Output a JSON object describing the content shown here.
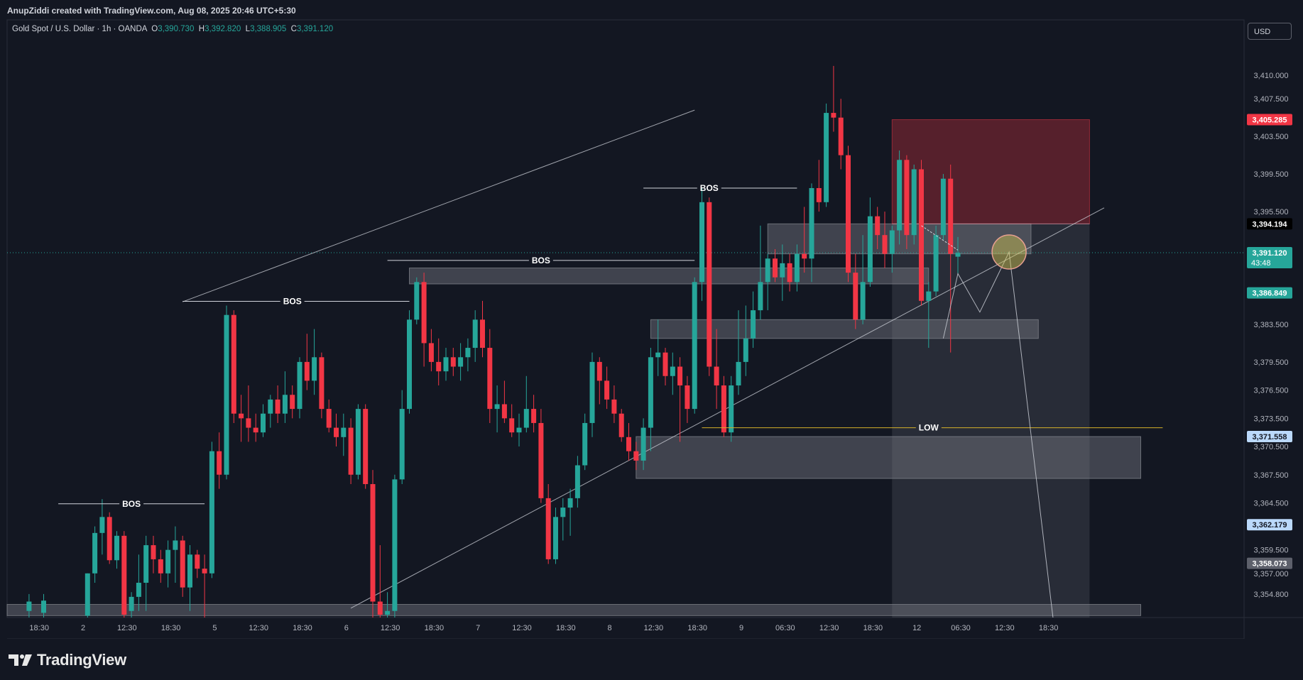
{
  "header": {
    "credit": "AnupZiddi created with TradingView.com, Aug 08, 2025 20:46 UTC+5:30"
  },
  "legend": {
    "symbol": "Gold Spot / U.S. Dollar · 1h · OANDA",
    "o_label": "O",
    "o": "3,390.730",
    "h_label": "H",
    "h": "3,392.820",
    "l_label": "L",
    "l": "3,388.905",
    "c_label": "C",
    "c": "3,391.120"
  },
  "currency_button": "USD",
  "footer": {
    "brand": "TradingView"
  },
  "colors": {
    "background": "#131722",
    "up": "#26a69a",
    "down": "#f23645",
    "stop_zone": "#f23645",
    "target_zone": "#787b86",
    "low_line": "#d4b02a"
  },
  "chart_data": {
    "type": "candlestick",
    "timeframe": "1h",
    "ylim": [
      3352.3,
      3415.9
    ],
    "y_ticks": [
      "3,410.000",
      "3,407.500",
      "3,403.500",
      "3,399.500",
      "3,395.500",
      "3,383.500",
      "3,379.500",
      "3,376.500",
      "3,373.500",
      "3,370.500",
      "3,367.500",
      "3,364.500",
      "3,359.500",
      "3,357.000",
      "3,354.800"
    ],
    "x_ticks": [
      "18:30",
      "2",
      "12:30",
      "18:30",
      "5",
      "12:30",
      "18:30",
      "6",
      "12:30",
      "18:30",
      "7",
      "12:30",
      "18:30",
      "8",
      "12:30",
      "18:30",
      "9",
      "06:30",
      "12:30",
      "18:30",
      "12",
      "06:30",
      "12:30",
      "18:30"
    ],
    "price_labels": [
      {
        "text": "3,405.285",
        "price": 3405.285,
        "style": "red"
      },
      {
        "text": "3,394.194",
        "price": 3394.194,
        "style": "black"
      },
      {
        "text": "3,391.120",
        "price": 3391.12,
        "style": "green",
        "sub": "43:48"
      },
      {
        "text": "3,386.849",
        "price": 3386.849,
        "style": "green"
      },
      {
        "text": "3,371.558",
        "price": 3371.558,
        "style": "lightblue"
      },
      {
        "text": "3,362.179",
        "price": 3362.179,
        "style": "lightblue"
      },
      {
        "text": "3,358.073",
        "price": 3358.073,
        "style": "gray"
      }
    ],
    "last_price": 3391.12,
    "candles": [
      {
        "i": 3,
        "o": 3353.0,
        "h": 3354.8,
        "l": 3352.3,
        "c": 3354.0
      },
      {
        "i": 5,
        "o": 3352.8,
        "h": 3354.8,
        "l": 3352.3,
        "c": 3354.1
      },
      {
        "i": 11,
        "o": 3352.5,
        "h": 3357.0,
        "l": 3352.3,
        "c": 3357.0
      },
      {
        "i": 12,
        "o": 3357.0,
        "h": 3362.0,
        "l": 3356.0,
        "c": 3361.3
      },
      {
        "i": 13,
        "o": 3361.3,
        "h": 3364.9,
        "l": 3359.0,
        "c": 3363.0
      },
      {
        "i": 14,
        "o": 3363.0,
        "h": 3363.5,
        "l": 3358.0,
        "c": 3358.4
      },
      {
        "i": 15,
        "o": 3358.4,
        "h": 3361.5,
        "l": 3357.5,
        "c": 3361.0
      },
      {
        "i": 16,
        "o": 3361.0,
        "h": 3361.5,
        "l": 3352.3,
        "c": 3352.6
      },
      {
        "i": 17,
        "o": 3353.0,
        "h": 3355.0,
        "l": 3352.3,
        "c": 3354.5
      },
      {
        "i": 18,
        "o": 3354.5,
        "h": 3359.0,
        "l": 3353.0,
        "c": 3356.0
      },
      {
        "i": 19,
        "o": 3356.0,
        "h": 3361.0,
        "l": 3353.0,
        "c": 3360.0
      },
      {
        "i": 20,
        "o": 3360.0,
        "h": 3361.0,
        "l": 3357.0,
        "c": 3358.5
      },
      {
        "i": 21,
        "o": 3358.5,
        "h": 3359.5,
        "l": 3356.0,
        "c": 3357.0
      },
      {
        "i": 22,
        "o": 3357.0,
        "h": 3360.5,
        "l": 3355.5,
        "c": 3359.5
      },
      {
        "i": 23,
        "o": 3359.5,
        "h": 3362.0,
        "l": 3356.0,
        "c": 3360.5
      },
      {
        "i": 24,
        "o": 3360.5,
        "h": 3361.0,
        "l": 3354.5,
        "c": 3355.5
      },
      {
        "i": 25,
        "o": 3355.5,
        "h": 3360.0,
        "l": 3353.0,
        "c": 3359.0
      },
      {
        "i": 26,
        "o": 3359.0,
        "h": 3359.5,
        "l": 3356.5,
        "c": 3357.5
      },
      {
        "i": 27,
        "o": 3357.5,
        "h": 3359.0,
        "l": 3352.3,
        "c": 3357.0
      },
      {
        "i": 28,
        "o": 3357.0,
        "h": 3371.0,
        "l": 3356.5,
        "c": 3370.0
      },
      {
        "i": 29,
        "o": 3370.0,
        "h": 3372.0,
        "l": 3366.0,
        "c": 3367.5
      },
      {
        "i": 30,
        "o": 3367.5,
        "h": 3385.5,
        "l": 3367.0,
        "c": 3384.5
      },
      {
        "i": 31,
        "o": 3384.5,
        "h": 3385.0,
        "l": 3373.0,
        "c": 3374.0
      },
      {
        "i": 32,
        "o": 3374.0,
        "h": 3376.0,
        "l": 3371.0,
        "c": 3373.5
      },
      {
        "i": 33,
        "o": 3373.5,
        "h": 3377.0,
        "l": 3371.0,
        "c": 3372.5
      },
      {
        "i": 34,
        "o": 3372.5,
        "h": 3374.0,
        "l": 3371.0,
        "c": 3372.0
      },
      {
        "i": 35,
        "o": 3372.0,
        "h": 3375.0,
        "l": 3371.5,
        "c": 3374.0
      },
      {
        "i": 36,
        "o": 3374.0,
        "h": 3376.0,
        "l": 3372.5,
        "c": 3375.5
      },
      {
        "i": 37,
        "o": 3375.5,
        "h": 3377.0,
        "l": 3373.0,
        "c": 3374.0
      },
      {
        "i": 38,
        "o": 3374.0,
        "h": 3378.5,
        "l": 3373.0,
        "c": 3376.0
      },
      {
        "i": 39,
        "o": 3376.0,
        "h": 3377.0,
        "l": 3373.5,
        "c": 3374.5
      },
      {
        "i": 40,
        "o": 3374.5,
        "h": 3380.0,
        "l": 3373.5,
        "c": 3379.5
      },
      {
        "i": 41,
        "o": 3379.5,
        "h": 3382.5,
        "l": 3376.5,
        "c": 3377.5
      },
      {
        "i": 42,
        "o": 3377.5,
        "h": 3383.0,
        "l": 3376.0,
        "c": 3380.0
      },
      {
        "i": 43,
        "o": 3380.0,
        "h": 3380.5,
        "l": 3373.5,
        "c": 3374.5
      },
      {
        "i": 44,
        "o": 3374.5,
        "h": 3375.5,
        "l": 3372.0,
        "c": 3372.5
      },
      {
        "i": 45,
        "o": 3372.5,
        "h": 3374.0,
        "l": 3370.5,
        "c": 3371.5
      },
      {
        "i": 46,
        "o": 3371.5,
        "h": 3374.0,
        "l": 3369.5,
        "c": 3372.5
      },
      {
        "i": 47,
        "o": 3372.5,
        "h": 3373.5,
        "l": 3366.5,
        "c": 3367.5
      },
      {
        "i": 48,
        "o": 3367.5,
        "h": 3375.0,
        "l": 3367.0,
        "c": 3374.5
      },
      {
        "i": 49,
        "o": 3374.5,
        "h": 3375.0,
        "l": 3366.0,
        "c": 3366.5
      },
      {
        "i": 50,
        "o": 3366.5,
        "h": 3368.0,
        "l": 3352.3,
        "c": 3354.0
      },
      {
        "i": 51,
        "o": 3354.0,
        "h": 3360.0,
        "l": 3352.3,
        "c": 3352.6
      },
      {
        "i": 52,
        "o": 3352.6,
        "h": 3355.0,
        "l": 3352.3,
        "c": 3353.0
      },
      {
        "i": 53,
        "o": 3353.0,
        "h": 3367.5,
        "l": 3352.3,
        "c": 3367.0
      },
      {
        "i": 54,
        "o": 3367.0,
        "h": 3376.5,
        "l": 3366.5,
        "c": 3374.5
      },
      {
        "i": 55,
        "o": 3374.5,
        "h": 3385.0,
        "l": 3374.0,
        "c": 3384.0
      },
      {
        "i": 56,
        "o": 3384.0,
        "h": 3388.5,
        "l": 3383.5,
        "c": 3388.0
      },
      {
        "i": 57,
        "o": 3388.0,
        "h": 3389.0,
        "l": 3379.0,
        "c": 3381.5
      },
      {
        "i": 58,
        "o": 3381.5,
        "h": 3383.0,
        "l": 3378.5,
        "c": 3379.5
      },
      {
        "i": 59,
        "o": 3379.5,
        "h": 3382.0,
        "l": 3377.0,
        "c": 3378.5
      },
      {
        "i": 60,
        "o": 3378.5,
        "h": 3381.0,
        "l": 3377.5,
        "c": 3380.0
      },
      {
        "i": 61,
        "o": 3380.0,
        "h": 3381.0,
        "l": 3378.0,
        "c": 3379.0
      },
      {
        "i": 62,
        "o": 3379.0,
        "h": 3381.5,
        "l": 3377.5,
        "c": 3380.0
      },
      {
        "i": 63,
        "o": 3380.0,
        "h": 3382.0,
        "l": 3378.5,
        "c": 3381.0
      },
      {
        "i": 64,
        "o": 3381.0,
        "h": 3385.0,
        "l": 3379.5,
        "c": 3384.0
      },
      {
        "i": 65,
        "o": 3384.0,
        "h": 3386.0,
        "l": 3380.0,
        "c": 3381.0
      },
      {
        "i": 66,
        "o": 3381.0,
        "h": 3383.0,
        "l": 3373.0,
        "c": 3374.5
      },
      {
        "i": 67,
        "o": 3374.5,
        "h": 3377.0,
        "l": 3372.0,
        "c": 3375.0
      },
      {
        "i": 68,
        "o": 3375.0,
        "h": 3377.5,
        "l": 3373.0,
        "c": 3373.5
      },
      {
        "i": 69,
        "o": 3373.5,
        "h": 3375.0,
        "l": 3371.5,
        "c": 3372.0
      },
      {
        "i": 70,
        "o": 3372.0,
        "h": 3374.0,
        "l": 3370.5,
        "c": 3372.5
      },
      {
        "i": 71,
        "o": 3372.5,
        "h": 3378.0,
        "l": 3372.0,
        "c": 3374.5
      },
      {
        "i": 72,
        "o": 3374.5,
        "h": 3376.0,
        "l": 3372.0,
        "c": 3373.0
      },
      {
        "i": 73,
        "o": 3373.0,
        "h": 3374.5,
        "l": 3364.5,
        "c": 3365.0
      },
      {
        "i": 74,
        "o": 3365.0,
        "h": 3366.5,
        "l": 3358.0,
        "c": 3358.5
      },
      {
        "i": 75,
        "o": 3358.5,
        "h": 3364.0,
        "l": 3358.0,
        "c": 3363.0
      },
      {
        "i": 76,
        "o": 3363.0,
        "h": 3365.0,
        "l": 3360.5,
        "c": 3364.0
      },
      {
        "i": 77,
        "o": 3364.0,
        "h": 3366.0,
        "l": 3361.0,
        "c": 3365.0
      },
      {
        "i": 78,
        "o": 3365.0,
        "h": 3369.5,
        "l": 3364.0,
        "c": 3368.5
      },
      {
        "i": 79,
        "o": 3368.5,
        "h": 3374.0,
        "l": 3368.0,
        "c": 3373.0
      },
      {
        "i": 80,
        "o": 3373.0,
        "h": 3380.5,
        "l": 3371.5,
        "c": 3379.5
      },
      {
        "i": 81,
        "o": 3379.5,
        "h": 3380.0,
        "l": 3375.0,
        "c": 3377.5
      },
      {
        "i": 82,
        "o": 3377.5,
        "h": 3379.0,
        "l": 3374.5,
        "c": 3375.5
      },
      {
        "i": 83,
        "o": 3375.5,
        "h": 3377.0,
        "l": 3373.0,
        "c": 3374.0
      },
      {
        "i": 84,
        "o": 3374.0,
        "h": 3374.5,
        "l": 3371.0,
        "c": 3371.5
      },
      {
        "i": 85,
        "o": 3371.5,
        "h": 3373.0,
        "l": 3369.0,
        "c": 3370.0
      },
      {
        "i": 86,
        "o": 3370.0,
        "h": 3371.0,
        "l": 3368.0,
        "c": 3369.0
      },
      {
        "i": 87,
        "o": 3369.0,
        "h": 3373.5,
        "l": 3368.0,
        "c": 3372.5
      },
      {
        "i": 88,
        "o": 3372.5,
        "h": 3381.0,
        "l": 3370.0,
        "c": 3380.0
      },
      {
        "i": 89,
        "o": 3380.0,
        "h": 3384.0,
        "l": 3378.0,
        "c": 3380.5
      },
      {
        "i": 90,
        "o": 3380.5,
        "h": 3381.0,
        "l": 3377.0,
        "c": 3378.0
      },
      {
        "i": 91,
        "o": 3378.0,
        "h": 3380.5,
        "l": 3376.0,
        "c": 3379.0
      },
      {
        "i": 92,
        "o": 3379.0,
        "h": 3380.0,
        "l": 3371.0,
        "c": 3377.0
      },
      {
        "i": 93,
        "o": 3377.0,
        "h": 3378.0,
        "l": 3373.0,
        "c": 3374.5
      },
      {
        "i": 94,
        "o": 3374.5,
        "h": 3388.5,
        "l": 3374.0,
        "c": 3388.0
      },
      {
        "i": 95,
        "o": 3388.0,
        "h": 3398.0,
        "l": 3386.0,
        "c": 3396.5
      },
      {
        "i": 96,
        "o": 3396.5,
        "h": 3397.0,
        "l": 3378.0,
        "c": 3379.0
      },
      {
        "i": 97,
        "o": 3379.0,
        "h": 3383.0,
        "l": 3374.5,
        "c": 3377.0
      },
      {
        "i": 98,
        "o": 3377.0,
        "h": 3378.0,
        "l": 3371.5,
        "c": 3372.0
      },
      {
        "i": 99,
        "o": 3372.0,
        "h": 3378.0,
        "l": 3371.0,
        "c": 3377.0
      },
      {
        "i": 100,
        "o": 3377.0,
        "h": 3385.0,
        "l": 3376.0,
        "c": 3379.5
      },
      {
        "i": 101,
        "o": 3379.5,
        "h": 3385.5,
        "l": 3378.0,
        "c": 3382.0
      },
      {
        "i": 102,
        "o": 3382.0,
        "h": 3387.0,
        "l": 3381.0,
        "c": 3385.0
      },
      {
        "i": 103,
        "o": 3385.0,
        "h": 3394.0,
        "l": 3384.0,
        "c": 3388.0
      },
      {
        "i": 104,
        "o": 3388.0,
        "h": 3391.0,
        "l": 3385.0,
        "c": 3390.5
      },
      {
        "i": 105,
        "o": 3390.5,
        "h": 3391.5,
        "l": 3388.0,
        "c": 3388.5
      },
      {
        "i": 106,
        "o": 3388.5,
        "h": 3392.0,
        "l": 3386.0,
        "c": 3390.0
      },
      {
        "i": 107,
        "o": 3390.0,
        "h": 3391.0,
        "l": 3387.0,
        "c": 3388.0
      },
      {
        "i": 108,
        "o": 3388.0,
        "h": 3392.0,
        "l": 3387.0,
        "c": 3391.0
      },
      {
        "i": 109,
        "o": 3391.0,
        "h": 3396.0,
        "l": 3389.0,
        "c": 3390.5
      },
      {
        "i": 110,
        "o": 3390.5,
        "h": 3398.5,
        "l": 3388.0,
        "c": 3398.0
      },
      {
        "i": 111,
        "o": 3398.0,
        "h": 3401.0,
        "l": 3395.5,
        "c": 3396.5
      },
      {
        "i": 112,
        "o": 3396.5,
        "h": 3407.0,
        "l": 3396.0,
        "c": 3406.0
      },
      {
        "i": 113,
        "o": 3406.0,
        "h": 3411.0,
        "l": 3404.0,
        "c": 3405.5
      },
      {
        "i": 114,
        "o": 3405.5,
        "h": 3407.5,
        "l": 3400.0,
        "c": 3401.5
      },
      {
        "i": 115,
        "o": 3401.5,
        "h": 3402.5,
        "l": 3388.0,
        "c": 3389.0
      },
      {
        "i": 116,
        "o": 3389.0,
        "h": 3391.0,
        "l": 3383.0,
        "c": 3384.0
      },
      {
        "i": 117,
        "o": 3384.0,
        "h": 3393.0,
        "l": 3383.5,
        "c": 3388.0
      },
      {
        "i": 118,
        "o": 3388.0,
        "h": 3397.0,
        "l": 3387.5,
        "c": 3395.0
      },
      {
        "i": 119,
        "o": 3395.0,
        "h": 3396.0,
        "l": 3391.5,
        "c": 3393.0
      },
      {
        "i": 120,
        "o": 3393.0,
        "h": 3395.5,
        "l": 3389.5,
        "c": 3391.0
      },
      {
        "i": 121,
        "o": 3391.0,
        "h": 3394.0,
        "l": 3389.0,
        "c": 3393.5
      },
      {
        "i": 122,
        "o": 3393.5,
        "h": 3402.0,
        "l": 3392.0,
        "c": 3401.0
      },
      {
        "i": 123,
        "o": 3401.0,
        "h": 3401.5,
        "l": 3391.5,
        "c": 3393.0
      },
      {
        "i": 124,
        "o": 3393.0,
        "h": 3400.5,
        "l": 3392.0,
        "c": 3400.0
      },
      {
        "i": 125,
        "o": 3400.0,
        "h": 3401.0,
        "l": 3385.5,
        "c": 3386.0
      },
      {
        "i": 126,
        "o": 3386.0,
        "h": 3388.0,
        "l": 3381.0,
        "c": 3387.0
      },
      {
        "i": 127,
        "o": 3387.0,
        "h": 3394.0,
        "l": 3386.5,
        "c": 3393.0
      },
      {
        "i": 128,
        "o": 3393.0,
        "h": 3399.5,
        "l": 3392.5,
        "c": 3399.0
      },
      {
        "i": 129,
        "o": 3399.0,
        "h": 3400.5,
        "l": 3380.5,
        "c": 3391.0
      },
      {
        "i": 130,
        "o": 3390.7,
        "h": 3392.8,
        "l": 3388.9,
        "c": 3391.1
      }
    ],
    "zones": [
      {
        "name": "zone-top-bos",
        "i0": 55,
        "i1": 126,
        "p_top": 3389.5,
        "p_bot": 3387.8
      },
      {
        "name": "zone-entry",
        "i0": 104,
        "i1": 140,
        "p_top": 3394.194,
        "p_bot": 3391.0
      },
      {
        "name": "zone-mid-demand",
        "i0": 88,
        "i1": 141,
        "p_top": 3384.0,
        "p_bot": 3382.0
      },
      {
        "name": "zone-lower-demand",
        "i0": 86,
        "i1": 155,
        "p_top": 3371.558,
        "p_bot": 3367.1
      },
      {
        "name": "zone-bottom",
        "i0": 0,
        "i1": 155,
        "p_top": 3353.7,
        "p_bot": 3352.5
      }
    ],
    "trade_box": {
      "i0": 121,
      "i1": 148,
      "stop_top": 3405.285,
      "entry": 3394.194,
      "target": 3352.3
    },
    "bos_labels": [
      {
        "text": "BOS",
        "i0": 7,
        "i1": 27,
        "price": 3364.4,
        "label_i": 17
      },
      {
        "text": "BOS",
        "i0": 24,
        "i1": 55,
        "price": 3385.95,
        "label_i": 39
      },
      {
        "text": "BOS",
        "i0": 52,
        "i1": 94,
        "price": 3390.3,
        "label_i": 73
      },
      {
        "text": "BOS",
        "i0": 87,
        "i1": 108,
        "price": 3398.0,
        "label_i": 96
      }
    ],
    "low_level": {
      "text": "LOW",
      "price": 3372.5,
      "i0": 95,
      "i1": 158,
      "label_i": 126
    }
  }
}
